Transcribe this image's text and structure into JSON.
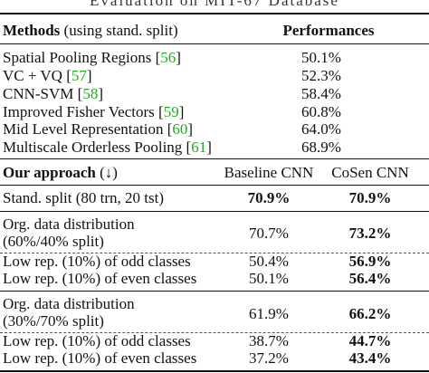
{
  "caption": "Evaluation on MIT-67 Database",
  "header": {
    "methods_bold": "Methods",
    "methods_note": " (using stand. split)",
    "performances": "Performances"
  },
  "methods": [
    {
      "name": "Spatial Pooling Regions [",
      "ref": "56",
      "close": "]",
      "value": "50.1%"
    },
    {
      "name": "VC + VQ [",
      "ref": "57",
      "close": "]",
      "value": "52.3%"
    },
    {
      "name": "CNN-SVM [",
      "ref": "58",
      "close": "]",
      "value": "58.4%"
    },
    {
      "name": "Improved Fisher Vectors [",
      "ref": "59",
      "close": "]",
      "value": "60.8%"
    },
    {
      "name": "Mid Level Representation [",
      "ref": "60",
      "close": "]",
      "value": "64.0%"
    },
    {
      "name": "Multiscale Orderless Pooling [",
      "ref": "61",
      "close": "]",
      "value": "68.9%"
    }
  ],
  "our": {
    "title_bold": "Our approach",
    "title_arrow": " (↓)",
    "baseline": "Baseline CNN",
    "cosen": "CoSen CNN"
  },
  "rows": {
    "stand": {
      "label": "Stand. split (80 trn, 20 tst)",
      "baseline": "70.9%",
      "cosen": "70.9%"
    },
    "org1": {
      "label1": "Org. data distribution",
      "label2": "(60%/40% split)",
      "baseline": "70.7%",
      "cosen": "73.2%"
    },
    "odd1": {
      "label": "Low rep. (10%) of odd classes",
      "baseline": "50.4%",
      "cosen": "56.9%"
    },
    "even1": {
      "label": "Low rep. (10%) of even classes",
      "baseline": "50.1%",
      "cosen": "56.4%"
    },
    "org2": {
      "label1": "Org. data distribution",
      "label2": "(30%/70% split)",
      "baseline": "61.9%",
      "cosen": "66.2%"
    },
    "odd2": {
      "label": "Low rep. (10%) of odd classes",
      "baseline": "38.7%",
      "cosen": "44.7%"
    },
    "even2": {
      "label": "Low rep. (10%) of even classes",
      "baseline": "37.2%",
      "cosen": "43.4%"
    }
  }
}
